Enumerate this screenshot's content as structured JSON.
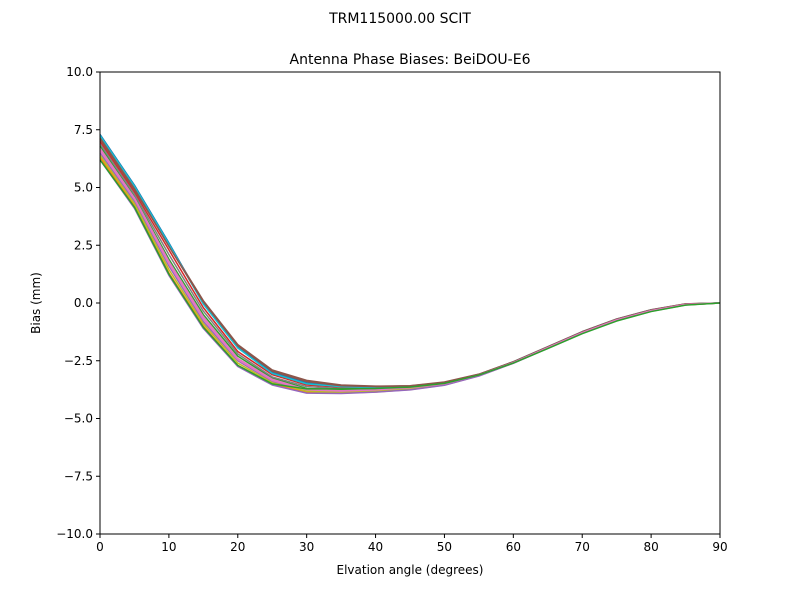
{
  "figure": {
    "suptitle": "TRM115000.00    SCIT"
  },
  "chart_data": {
    "type": "line",
    "title": "Antenna Phase Biases: BeiDOU-E6",
    "xlabel": "Elvation angle (degrees)",
    "ylabel": "Bias (mm)",
    "xlim": [
      0,
      90
    ],
    "ylim": [
      -10,
      10
    ],
    "xticks": [
      0,
      10,
      20,
      30,
      40,
      50,
      60,
      70,
      80,
      90
    ],
    "xtick_labels": [
      "0",
      "10",
      "20",
      "30",
      "40",
      "50",
      "60",
      "70",
      "80",
      "90"
    ],
    "yticks": [
      -10,
      -7.5,
      -5,
      -2.5,
      0,
      2.5,
      5,
      7.5,
      10
    ],
    "ytick_labels": [
      "−10.0",
      "−7.5",
      "−5.0",
      "−2.5",
      "0.0",
      "2.5",
      "5.0",
      "7.5",
      "10.0"
    ],
    "grid": false,
    "legend": "none",
    "x": [
      0,
      5,
      10,
      15,
      20,
      25,
      30,
      35,
      40,
      45,
      50,
      55,
      60,
      65,
      70,
      75,
      80,
      85,
      90
    ],
    "series": [
      {
        "color": "#1f77b4",
        "values": [
          7.3,
          5.1,
          2.6,
          0.0,
          -1.9,
          -3.0,
          -3.45,
          -3.6,
          -3.65,
          -3.6,
          -3.45,
          -3.1,
          -2.55,
          -1.9,
          -1.25,
          -0.7,
          -0.3,
          -0.05,
          0.0
        ]
      },
      {
        "color": "#ff7f0e",
        "values": [
          6.3,
          4.2,
          1.3,
          -1.0,
          -2.7,
          -3.5,
          -3.85,
          -3.9,
          -3.85,
          -3.75,
          -3.55,
          -3.15,
          -2.6,
          -1.95,
          -1.3,
          -0.75,
          -0.35,
          -0.08,
          0.0
        ]
      },
      {
        "color": "#2ca02c",
        "values": [
          6.8,
          4.6,
          1.9,
          -0.5,
          -2.3,
          -3.25,
          -3.7,
          -3.75,
          -3.72,
          -3.65,
          -3.5,
          -3.12,
          -2.58,
          -1.93,
          -1.28,
          -0.72,
          -0.32,
          -0.06,
          0.0
        ]
      },
      {
        "color": "#d62728",
        "values": [
          7.0,
          4.8,
          2.3,
          -0.2,
          -2.1,
          -3.1,
          -3.55,
          -3.65,
          -3.68,
          -3.62,
          -3.47,
          -3.1,
          -2.56,
          -1.91,
          -1.26,
          -0.71,
          -0.31,
          -0.05,
          0.0
        ]
      },
      {
        "color": "#9467bd",
        "values": [
          6.5,
          4.4,
          1.6,
          -0.8,
          -2.5,
          -3.4,
          -3.8,
          -3.85,
          -3.8,
          -3.7,
          -3.52,
          -3.13,
          -2.59,
          -1.94,
          -1.29,
          -0.74,
          -0.34,
          -0.07,
          0.0
        ]
      },
      {
        "color": "#8c564b",
        "values": [
          7.1,
          4.9,
          2.5,
          0.1,
          -1.8,
          -2.9,
          -3.35,
          -3.55,
          -3.6,
          -3.58,
          -3.42,
          -3.08,
          -2.54,
          -1.89,
          -1.24,
          -0.69,
          -0.29,
          -0.04,
          0.0
        ]
      },
      {
        "color": "#e377c2",
        "values": [
          6.6,
          4.5,
          1.7,
          -0.7,
          -2.45,
          -3.35,
          -3.78,
          -3.82,
          -3.78,
          -3.68,
          -3.5,
          -3.12,
          -2.58,
          -1.93,
          -1.28,
          -0.73,
          -0.33,
          -0.06,
          0.0
        ]
      },
      {
        "color": "#7f7f7f",
        "values": [
          6.9,
          4.7,
          2.1,
          -0.35,
          -2.2,
          -3.2,
          -3.62,
          -3.7,
          -3.7,
          -3.63,
          -3.48,
          -3.11,
          -2.57,
          -1.92,
          -1.27,
          -0.72,
          -0.32,
          -0.05,
          0.0
        ]
      },
      {
        "color": "#bcbd22",
        "values": [
          6.4,
          4.3,
          1.45,
          -0.9,
          -2.6,
          -3.45,
          -3.82,
          -3.88,
          -3.82,
          -3.72,
          -3.53,
          -3.14,
          -2.6,
          -1.95,
          -1.3,
          -0.75,
          -0.35,
          -0.08,
          0.0
        ]
      },
      {
        "color": "#17becf",
        "values": [
          7.25,
          5.05,
          2.55,
          -0.05,
          -1.95,
          -3.05,
          -3.5,
          -3.62,
          -3.66,
          -3.61,
          -3.46,
          -3.1,
          -2.55,
          -1.9,
          -1.25,
          -0.7,
          -0.3,
          -0.05,
          0.0
        ]
      },
      {
        "color": "#9467bd",
        "values": [
          6.2,
          4.1,
          1.2,
          -1.1,
          -2.75,
          -3.55,
          -3.9,
          -3.92,
          -3.86,
          -3.76,
          -3.56,
          -3.16,
          -2.61,
          -1.96,
          -1.31,
          -0.76,
          -0.36,
          -0.08,
          0.0
        ]
      },
      {
        "color": "#8c564b",
        "values": [
          7.15,
          4.95,
          2.45,
          0.05,
          -1.85,
          -2.95,
          -3.4,
          -3.58,
          -3.62,
          -3.59,
          -3.44,
          -3.09,
          -2.55,
          -1.9,
          -1.25,
          -0.7,
          -0.3,
          -0.04,
          0.0
        ]
      },
      {
        "color": "#e377c2",
        "values": [
          6.7,
          4.55,
          1.8,
          -0.6,
          -2.4,
          -3.3,
          -3.75,
          -3.8,
          -3.76,
          -3.67,
          -3.5,
          -3.12,
          -2.58,
          -1.93,
          -1.28,
          -0.73,
          -0.33,
          -0.06,
          0.0
        ]
      },
      {
        "color": "#2ca02c",
        "values": [
          6.2,
          4.15,
          1.25,
          -1.05,
          -2.7,
          -3.5,
          -3.72,
          -3.72,
          -3.7,
          -3.64,
          -3.48,
          -3.12,
          -2.6,
          -1.97,
          -1.33,
          -0.78,
          -0.37,
          -0.09,
          0.0
        ]
      }
    ]
  }
}
